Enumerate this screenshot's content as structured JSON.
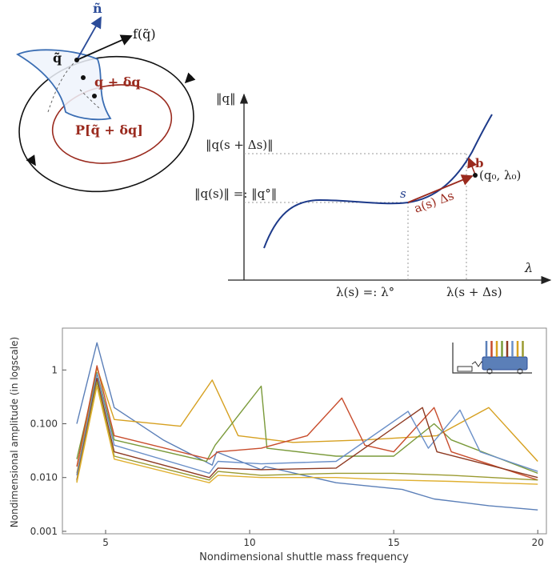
{
  "top_left_diagram": {
    "labels": {
      "normal": "ñ",
      "vector_field": "f(q̃)",
      "point": "q̃",
      "perturbed": "q + δq",
      "projection": "P[q̃ + δq]"
    },
    "colors": {
      "normal": "#2b4c99",
      "orbit_inner": "#9a2a1e",
      "orbit_outer": "#111111",
      "surface_edge": "#3a6db3"
    }
  },
  "continuation_diagram": {
    "labels": {
      "y_axis": "‖q‖",
      "x_axis": "λ",
      "q_s_plus": "‖q(s + Δs)‖",
      "q_s": "‖q(s)‖ =: ‖q°‖",
      "s": "s",
      "predictor": "a(s) Δs",
      "corrector": "b",
      "point": "(q₀, λ₀)",
      "lambda_s": "λ(s) =: λ°",
      "lambda_s_plus": "λ(s + Δs)"
    },
    "colors": {
      "curve": "#1d3a8a",
      "predictor": "#9a2a1e"
    }
  },
  "chart_data": {
    "type": "line",
    "xlabel": "Nondimensional shuttle mass frequency",
    "ylabel": "Nondimensional amplitude (in logscale)",
    "xlim": [
      3.5,
      20.3
    ],
    "ylim": [
      0.0009,
      6
    ],
    "yscale": "log",
    "x_ticks": [
      "5",
      "10",
      "15",
      "20"
    ],
    "x_tick_values": [
      5,
      10,
      15,
      20
    ],
    "y_ticks": [
      "1",
      "0.100",
      "0.010",
      "0.001"
    ],
    "y_tick_values": [
      1,
      0.1,
      0.01,
      0.001
    ],
    "grid": false,
    "series": [
      {
        "color": "#5b7fb8",
        "values": [
          [
            4,
            0.1
          ],
          [
            4.7,
            3.2
          ],
          [
            5.3,
            0.2
          ],
          [
            7,
            0.05
          ],
          [
            8.7,
            0.017
          ],
          [
            8.85,
            0.03
          ],
          [
            10.4,
            0.014
          ],
          [
            10.55,
            0.016
          ],
          [
            13,
            0.008
          ],
          [
            15.3,
            0.006
          ],
          [
            16.4,
            0.004
          ],
          [
            17.3,
            0.0035
          ],
          [
            18.3,
            0.003
          ],
          [
            20,
            0.0025
          ]
        ]
      },
      {
        "color": "#d6a020",
        "values": [
          [
            4,
            0.012
          ],
          [
            4.7,
            1.1
          ],
          [
            5.3,
            0.12
          ],
          [
            7.6,
            0.09
          ],
          [
            8.7,
            0.65
          ],
          [
            9.6,
            0.06
          ],
          [
            11.5,
            0.045
          ],
          [
            14,
            0.05
          ],
          [
            16.5,
            0.06
          ],
          [
            18.3,
            0.2
          ],
          [
            20,
            0.02
          ]
        ]
      },
      {
        "color": "#7a9a3a",
        "values": [
          [
            4,
            0.022
          ],
          [
            4.7,
            0.9
          ],
          [
            5.3,
            0.05
          ],
          [
            8.5,
            0.02
          ],
          [
            8.8,
            0.04
          ],
          [
            10.4,
            0.5
          ],
          [
            10.6,
            0.035
          ],
          [
            13,
            0.025
          ],
          [
            15,
            0.025
          ],
          [
            16.4,
            0.1
          ],
          [
            17,
            0.05
          ],
          [
            20,
            0.012
          ]
        ]
      },
      {
        "color": "#c84c2c",
        "values": [
          [
            4,
            0.016
          ],
          [
            4.7,
            1.2
          ],
          [
            5.3,
            0.06
          ],
          [
            8.6,
            0.022
          ],
          [
            8.9,
            0.03
          ],
          [
            10.4,
            0.035
          ],
          [
            12,
            0.06
          ],
          [
            13.2,
            0.3
          ],
          [
            14,
            0.04
          ],
          [
            15,
            0.03
          ],
          [
            16.4,
            0.2
          ],
          [
            17,
            0.03
          ],
          [
            20,
            0.009
          ]
        ]
      },
      {
        "color": "#6a8fc8",
        "values": [
          [
            4,
            0.011
          ],
          [
            4.7,
            0.85
          ],
          [
            5.3,
            0.04
          ],
          [
            8.6,
            0.012
          ],
          [
            8.9,
            0.02
          ],
          [
            10.4,
            0.018
          ],
          [
            13,
            0.02
          ],
          [
            15.5,
            0.17
          ],
          [
            16.2,
            0.035
          ],
          [
            17.3,
            0.18
          ],
          [
            18,
            0.03
          ],
          [
            20,
            0.013
          ]
        ]
      },
      {
        "color": "#8e3a22",
        "values": [
          [
            4,
            0.009
          ],
          [
            4.7,
            0.7
          ],
          [
            5.3,
            0.03
          ],
          [
            8.6,
            0.01
          ],
          [
            8.9,
            0.015
          ],
          [
            10.4,
            0.014
          ],
          [
            13,
            0.015
          ],
          [
            16,
            0.2
          ],
          [
            16.5,
            0.03
          ],
          [
            20,
            0.01
          ]
        ]
      },
      {
        "color": "#9a9a30",
        "values": [
          [
            4,
            0.0085
          ],
          [
            4.7,
            0.6
          ],
          [
            5.3,
            0.025
          ],
          [
            8.6,
            0.009
          ],
          [
            8.9,
            0.013
          ],
          [
            10.4,
            0.011
          ],
          [
            13,
            0.012
          ],
          [
            15,
            0.012
          ],
          [
            17,
            0.011
          ],
          [
            20,
            0.009
          ]
        ]
      },
      {
        "color": "#e0b030",
        "values": [
          [
            4,
            0.008
          ],
          [
            4.7,
            0.5
          ],
          [
            5.3,
            0.022
          ],
          [
            8.6,
            0.008
          ],
          [
            8.9,
            0.011
          ],
          [
            10.4,
            0.01
          ],
          [
            13,
            0.01
          ],
          [
            15,
            0.009
          ],
          [
            17,
            0.0085
          ],
          [
            20,
            0.0075
          ]
        ]
      }
    ]
  },
  "inset_icon": {
    "rod_colors": [
      "#5b7fb8",
      "#c84c2c",
      "#d6a020",
      "#7a9a3a",
      "#8e3a22",
      "#6a8fc8",
      "#d6a020",
      "#9a9a30"
    ]
  }
}
